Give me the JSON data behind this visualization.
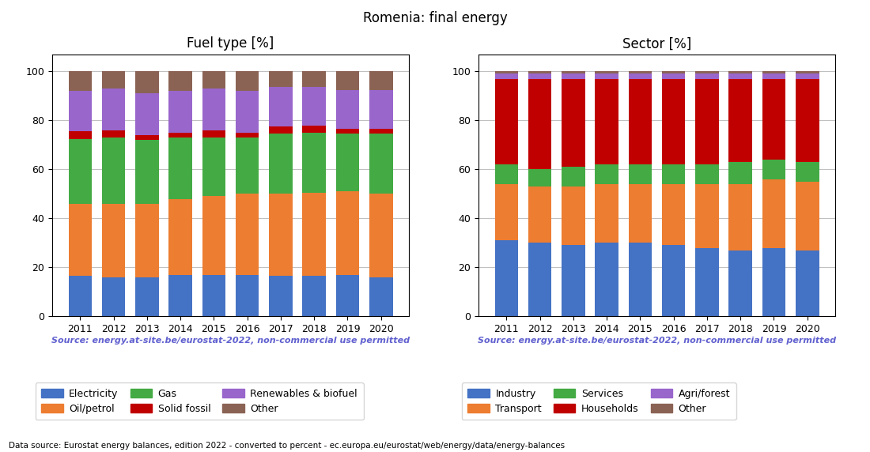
{
  "title": "Romenia: final energy",
  "years": [
    2011,
    2012,
    2013,
    2014,
    2015,
    2016,
    2017,
    2018,
    2019,
    2020
  ],
  "fuel_title": "Fuel type [%]",
  "sector_title": "Sector [%]",
  "source_text": "Source: energy.at-site.be/eurostat-2022, non-commercial use permitted",
  "bottom_text": "Data source: Eurostat energy balances, edition 2022 - converted to percent - ec.europa.eu/eurostat/web/energy/data/energy-balances",
  "fuel_data": {
    "Electricity": [
      16.5,
      16.0,
      16.0,
      17.0,
      17.0,
      17.0,
      16.5,
      16.5,
      17.0,
      16.0
    ],
    "Oil/petrol": [
      29.5,
      30.0,
      30.0,
      31.0,
      32.0,
      33.0,
      33.5,
      34.0,
      34.0,
      34.0
    ],
    "Gas": [
      26.5,
      27.0,
      26.0,
      25.0,
      24.0,
      23.0,
      24.5,
      24.5,
      23.5,
      24.5
    ],
    "Solid fossil": [
      3.0,
      3.0,
      2.0,
      2.0,
      3.0,
      2.0,
      3.0,
      3.0,
      2.0,
      2.0
    ],
    "Renewables & biofuel": [
      16.5,
      17.0,
      17.0,
      17.0,
      17.0,
      17.0,
      16.0,
      15.5,
      16.0,
      16.0
    ],
    "Other": [
      8.0,
      7.0,
      9.0,
      8.0,
      7.0,
      8.0,
      6.5,
      6.5,
      7.5,
      7.5
    ]
  },
  "fuel_colors": {
    "Electricity": "#4472c4",
    "Oil/petrol": "#ed7d31",
    "Gas": "#44aa44",
    "Solid fossil": "#c00000",
    "Renewables & biofuel": "#9966cc",
    "Other": "#8b6355"
  },
  "fuel_order": [
    "Electricity",
    "Oil/petrol",
    "Gas",
    "Solid fossil",
    "Renewables & biofuel",
    "Other"
  ],
  "sector_data": {
    "Industry": [
      31.0,
      30.0,
      29.0,
      30.0,
      30.0,
      29.0,
      28.0,
      27.0,
      28.0,
      27.0
    ],
    "Transport": [
      23.0,
      23.0,
      24.0,
      24.0,
      24.0,
      25.0,
      26.0,
      27.0,
      28.0,
      28.0
    ],
    "Services": [
      8.0,
      7.0,
      8.0,
      8.0,
      8.0,
      8.0,
      8.0,
      9.0,
      8.0,
      8.0
    ],
    "Households": [
      35.0,
      37.0,
      36.0,
      35.0,
      35.0,
      35.0,
      35.0,
      34.0,
      33.0,
      34.0
    ],
    "Agri/forest": [
      2.0,
      2.0,
      2.0,
      2.0,
      2.0,
      2.0,
      2.0,
      2.0,
      2.0,
      2.0
    ],
    "Other": [
      1.0,
      1.0,
      1.0,
      1.0,
      1.0,
      1.0,
      1.0,
      1.0,
      1.0,
      1.0
    ]
  },
  "sector_colors": {
    "Industry": "#4472c4",
    "Transport": "#ed7d31",
    "Services": "#44aa44",
    "Households": "#c00000",
    "Agri/forest": "#9966cc",
    "Other": "#8b6355"
  },
  "sector_order": [
    "Industry",
    "Transport",
    "Services",
    "Households",
    "Agri/forest",
    "Other"
  ],
  "ylim": [
    0,
    107
  ],
  "yticks": [
    0,
    20,
    40,
    60,
    80,
    100
  ],
  "source_color": "#6060d0",
  "background_color": "#ffffff"
}
